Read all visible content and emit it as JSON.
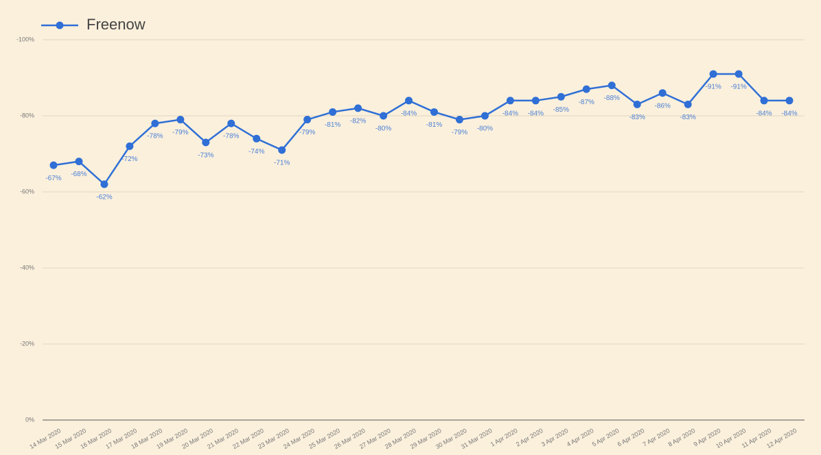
{
  "chart_data": {
    "type": "line",
    "categories": [
      "14 Mar 2020",
      "15 Mar 2020",
      "16 Mar 2020",
      "17 Mar 2020",
      "18 Mar 2020",
      "19 Mar 2020",
      "20 Mar 2020",
      "21 Mar 2020",
      "22 Mar 2020",
      "23 Mar 2020",
      "24 Mar 2020",
      "25 Mar 2020",
      "26 Mar 2020",
      "27 Mar 2020",
      "28 Mar 2020",
      "29 Mar 2020",
      "30 Mar 2020",
      "31 Mar 2020",
      "1 Apr 2020",
      "2 Apr 2020",
      "3 Apr 2020",
      "4 Apr 2020",
      "5 Apr 2020",
      "6 Apr 2020",
      "7 Apr 2020",
      "8 Apr 2020",
      "9 Apr 2020",
      "10 Apr 2020",
      "11 Apr 2020",
      "12 Apr 2020"
    ],
    "series": [
      {
        "name": "Freenow",
        "color": "#2f6fd6",
        "values": [
          -67,
          -68,
          -62,
          -72,
          -78,
          -79,
          -73,
          -78,
          -74,
          -71,
          -79,
          -81,
          -82,
          -80,
          -84,
          -81,
          -79,
          -80,
          -84,
          -84,
          -85,
          -87,
          -88,
          -83,
          -86,
          -83,
          -91,
          -91,
          -84,
          -84
        ],
        "value_labels": [
          "-67%",
          "-68%",
          "-62%",
          "-72%",
          "-78%",
          "-79%",
          "-73%",
          "-78%",
          "-74%",
          "-71%",
          "-79%",
          "-81%",
          "-82%",
          "-80%",
          "-84%",
          "-81%",
          "-79%",
          "-80%",
          "-84%",
          "-84%",
          "-85%",
          "-87%",
          "-88%",
          "-83%",
          "-86%",
          "-83%",
          "-91%",
          "-91%",
          "-84%",
          "-84%"
        ]
      }
    ],
    "ylim": [
      0,
      -100
    ],
    "yticks": [
      {
        "value": 0,
        "label": "0%"
      },
      {
        "value": -20,
        "label": "-20%"
      },
      {
        "value": -40,
        "label": "-40%"
      },
      {
        "value": -60,
        "label": "-60%"
      },
      {
        "value": -80,
        "label": "-80%"
      },
      {
        "value": -100,
        "label": "-100%"
      }
    ],
    "grid": true,
    "legend": "top-left"
  }
}
